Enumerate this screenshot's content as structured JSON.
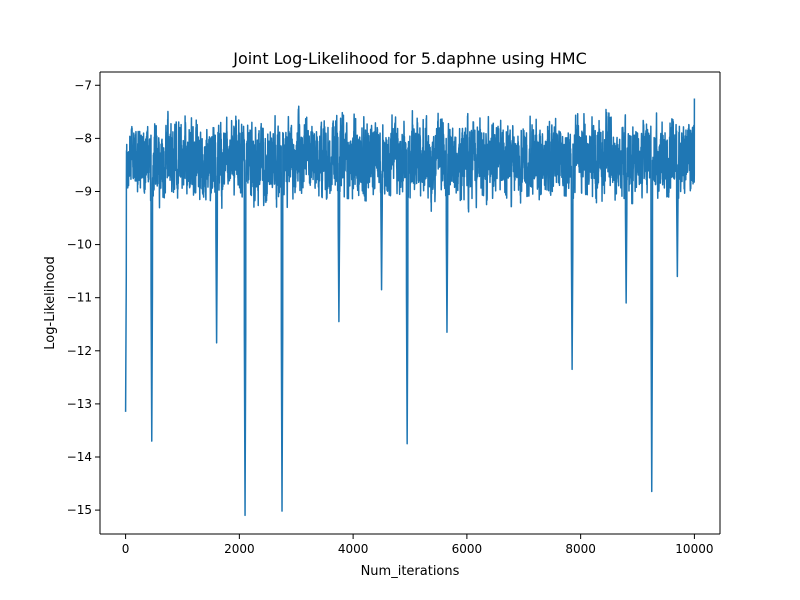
{
  "chart_data": {
    "type": "line",
    "title": "Joint Log-Likelihood for 5.daphne using HMC",
    "xlabel": "Num_iterations",
    "ylabel": "Log-Likelihood",
    "xlim": [
      -450,
      10450
    ],
    "ylim": [
      -15.45,
      -6.75
    ],
    "x_ticks": [
      0,
      2000,
      4000,
      6000,
      8000,
      10000
    ],
    "x_tick_labels": [
      "0",
      "2000",
      "4000",
      "6000",
      "8000",
      "10000"
    ],
    "y_ticks": [
      -7,
      -8,
      -9,
      -10,
      -11,
      -12,
      -13,
      -14,
      -15
    ],
    "y_tick_labels": [
      "−7",
      "−8",
      "−9",
      "−10",
      "−11",
      "−12",
      "−13",
      "−14",
      "−15"
    ],
    "grid": false,
    "legend": "none",
    "line_color": "#1f77b4",
    "n_points": 10001,
    "x_range": [
      0,
      10000
    ],
    "y_max": -7.15,
    "y_min": -15.1,
    "notable_points": [
      {
        "x": 0,
        "y": -13.15
      },
      {
        "x": 20,
        "y": -7.2
      },
      {
        "x": 460,
        "y": -13.7
      },
      {
        "x": 1600,
        "y": -11.85
      },
      {
        "x": 2100,
        "y": -15.1
      },
      {
        "x": 2750,
        "y": -15.02
      },
      {
        "x": 3750,
        "y": -11.45
      },
      {
        "x": 4500,
        "y": -10.85
      },
      {
        "x": 4950,
        "y": -13.75
      },
      {
        "x": 5650,
        "y": -11.65
      },
      {
        "x": 7850,
        "y": -12.35
      },
      {
        "x": 8800,
        "y": -11.1
      },
      {
        "x": 9250,
        "y": -14.65
      },
      {
        "x": 9700,
        "y": -10.6
      },
      {
        "x": 10000,
        "y": -7.25
      }
    ]
  }
}
